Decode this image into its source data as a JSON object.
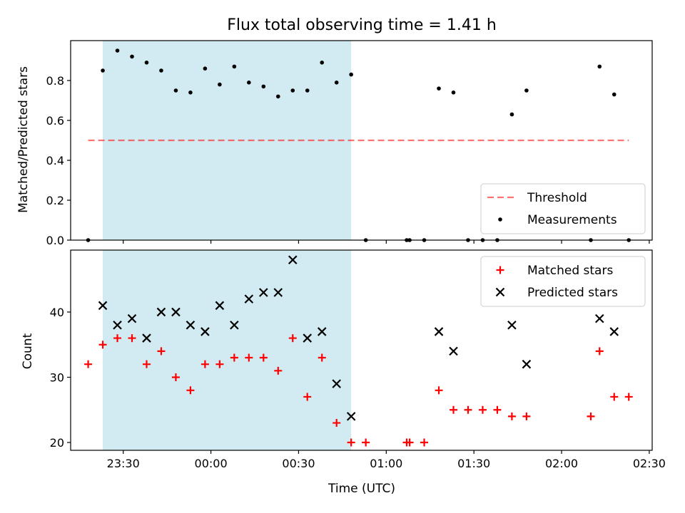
{
  "colors": {
    "band": "#add8e6",
    "threshold": "#ff0000",
    "measurements": "#000000",
    "matched": "#ff0000",
    "predicted": "#000000"
  },
  "chart_data": [
    {
      "type": "scatter",
      "title": "Flux total observing time = 1.41 h",
      "xlabel": "",
      "ylabel": "Matched/Predicted stars",
      "xlim": [
        "23:12",
        "02:31"
      ],
      "ylim": [
        0,
        1.0
      ],
      "yticks": [
        "0.0",
        "0.2",
        "0.4",
        "0.6",
        "0.8"
      ],
      "xticks": [
        "23:30",
        "00:00",
        "00:30",
        "01:00",
        "01:30",
        "02:00",
        "02:30"
      ],
      "tick_labels_visible": false,
      "grid": false,
      "legend": "lower-right",
      "shaded_band": {
        "x_start": "23:23",
        "x_end": "00:48"
      },
      "series": [
        {
          "name": "Threshold",
          "style": "dashed-line",
          "points": [
            [
              "23:18",
              0.5
            ],
            [
              "02:23",
              0.5
            ]
          ]
        },
        {
          "name": "Measurements",
          "style": "dot",
          "points": [
            [
              "23:18",
              0.0
            ],
            [
              "23:23",
              0.85
            ],
            [
              "23:28",
              0.95
            ],
            [
              "23:33",
              0.92
            ],
            [
              "23:38",
              0.89
            ],
            [
              "23:43",
              0.85
            ],
            [
              "23:48",
              0.75
            ],
            [
              "23:53",
              0.74
            ],
            [
              "23:58",
              0.86
            ],
            [
              "00:03",
              0.78
            ],
            [
              "00:08",
              0.87
            ],
            [
              "00:13",
              0.79
            ],
            [
              "00:18",
              0.77
            ],
            [
              "00:23",
              0.72
            ],
            [
              "00:28",
              0.75
            ],
            [
              "00:33",
              0.75
            ],
            [
              "00:38",
              0.89
            ],
            [
              "00:43",
              0.79
            ],
            [
              "00:48",
              0.83
            ],
            [
              "00:53",
              0.0
            ],
            [
              "01:07",
              0.0
            ],
            [
              "01:08",
              0.0
            ],
            [
              "01:13",
              0.0
            ],
            [
              "01:18",
              0.76
            ],
            [
              "01:23",
              0.74
            ],
            [
              "01:28",
              0.0
            ],
            [
              "01:33",
              0.0
            ],
            [
              "01:38",
              0.0
            ],
            [
              "01:43",
              0.63
            ],
            [
              "01:48",
              0.75
            ],
            [
              "02:10",
              0.0
            ],
            [
              "02:13",
              0.87
            ],
            [
              "02:18",
              0.73
            ],
            [
              "02:23",
              0.0
            ]
          ]
        }
      ]
    },
    {
      "type": "scatter",
      "title": "",
      "xlabel": "Time (UTC)",
      "ylabel": "Count",
      "xlim": [
        "23:12",
        "02:31"
      ],
      "ylim": [
        18.8,
        49.5
      ],
      "yticks": [
        "20",
        "30",
        "40"
      ],
      "xticks": [
        "23:30",
        "00:00",
        "00:30",
        "01:00",
        "01:30",
        "02:00",
        "02:30"
      ],
      "grid": false,
      "legend": "top-right",
      "shaded_band": {
        "x_start": "23:23",
        "x_end": "00:48"
      },
      "series": [
        {
          "name": "Matched stars",
          "style": "plus",
          "points": [
            [
              "23:18",
              32
            ],
            [
              "23:23",
              35
            ],
            [
              "23:28",
              36
            ],
            [
              "23:33",
              36
            ],
            [
              "23:38",
              32
            ],
            [
              "23:43",
              34
            ],
            [
              "23:48",
              30
            ],
            [
              "23:53",
              28
            ],
            [
              "23:58",
              32
            ],
            [
              "00:03",
              32
            ],
            [
              "00:08",
              33
            ],
            [
              "00:13",
              33
            ],
            [
              "00:18",
              33
            ],
            [
              "00:23",
              31
            ],
            [
              "00:28",
              36
            ],
            [
              "00:33",
              27
            ],
            [
              "00:38",
              33
            ],
            [
              "00:43",
              23
            ],
            [
              "00:48",
              20
            ],
            [
              "00:53",
              20
            ],
            [
              "01:07",
              20
            ],
            [
              "01:08",
              20
            ],
            [
              "01:13",
              20
            ],
            [
              "01:18",
              28
            ],
            [
              "01:23",
              25
            ],
            [
              "01:28",
              25
            ],
            [
              "01:33",
              25
            ],
            [
              "01:38",
              25
            ],
            [
              "01:43",
              24
            ],
            [
              "01:48",
              24
            ],
            [
              "02:10",
              24
            ],
            [
              "02:13",
              34
            ],
            [
              "02:18",
              27
            ],
            [
              "02:23",
              27
            ]
          ]
        },
        {
          "name": "Predicted stars",
          "style": "x",
          "points": [
            [
              "23:23",
              41
            ],
            [
              "23:28",
              38
            ],
            [
              "23:33",
              39
            ],
            [
              "23:38",
              36
            ],
            [
              "23:43",
              40
            ],
            [
              "23:48",
              40
            ],
            [
              "23:53",
              38
            ],
            [
              "23:58",
              37
            ],
            [
              "00:03",
              41
            ],
            [
              "00:08",
              38
            ],
            [
              "00:13",
              42
            ],
            [
              "00:18",
              43
            ],
            [
              "00:23",
              43
            ],
            [
              "00:28",
              48
            ],
            [
              "00:33",
              36
            ],
            [
              "00:38",
              37
            ],
            [
              "00:43",
              29
            ],
            [
              "00:48",
              24
            ],
            [
              "01:18",
              37
            ],
            [
              "01:23",
              34
            ],
            [
              "01:43",
              38
            ],
            [
              "01:48",
              32
            ],
            [
              "02:13",
              39
            ],
            [
              "02:18",
              37
            ]
          ]
        }
      ]
    }
  ]
}
